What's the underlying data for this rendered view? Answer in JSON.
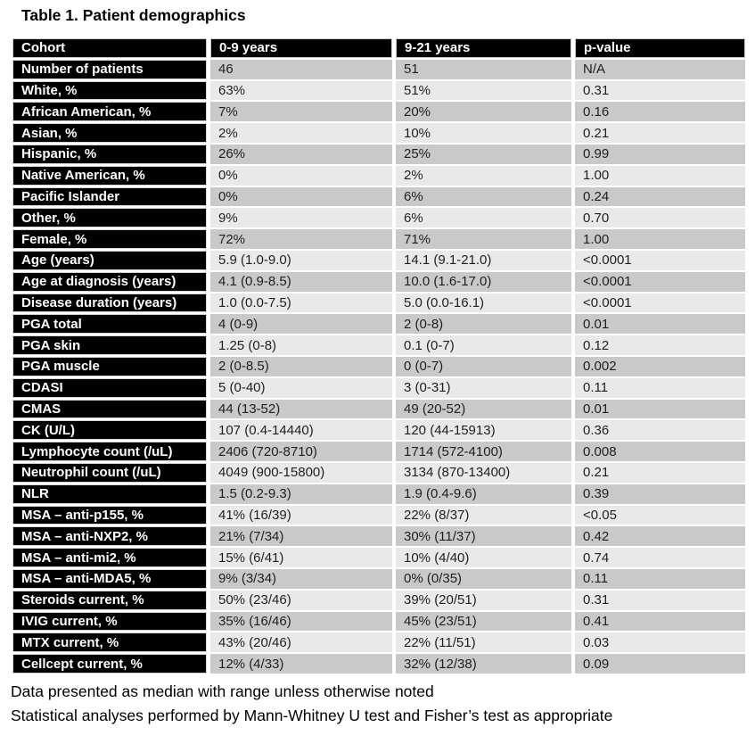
{
  "title": "Table 1. Patient demographics",
  "table": {
    "columns": [
      "Cohort",
      "0-9 years",
      "9-21 years",
      "p-value"
    ],
    "rows": [
      {
        "label": "Number of patients",
        "c1": "46",
        "c2": "51",
        "p": "N/A"
      },
      {
        "label": "White, %",
        "c1": "63%",
        "c2": "51%",
        "p": "0.31"
      },
      {
        "label": "African American, %",
        "c1": "7%",
        "c2": "20%",
        "p": "0.16"
      },
      {
        "label": "Asian, %",
        "c1": "2%",
        "c2": "10%",
        "p": "0.21"
      },
      {
        "label": "Hispanic, %",
        "c1": "26%",
        "c2": "25%",
        "p": "0.99"
      },
      {
        "label": "Native American, %",
        "c1": "0%",
        "c2": "2%",
        "p": "1.00"
      },
      {
        "label": "Pacific Islander",
        "c1": "0%",
        "c2": "6%",
        "p": "0.24"
      },
      {
        "label": "Other, %",
        "c1": "9%",
        "c2": "6%",
        "p": "0.70"
      },
      {
        "label": "Female, %",
        "c1": "72%",
        "c2": "71%",
        "p": "1.00"
      },
      {
        "label": "Age (years)",
        "c1": "5.9 (1.0-9.0)",
        "c2": "14.1 (9.1-21.0)",
        "p": "<0.0001"
      },
      {
        "label": "Age at diagnosis (years)",
        "c1": "4.1 (0.9-8.5)",
        "c2": "10.0 (1.6-17.0)",
        "p": "<0.0001"
      },
      {
        "label": "Disease duration (years)",
        "c1": "1.0 (0.0-7.5)",
        "c2": "5.0 (0.0-16.1)",
        "p": "<0.0001"
      },
      {
        "label": "PGA total",
        "c1": "4 (0-9)",
        "c2": "2 (0-8)",
        "p": "0.01"
      },
      {
        "label": "PGA skin",
        "c1": "1.25 (0-8)",
        "c2": "0.1 (0-7)",
        "p": "0.12"
      },
      {
        "label": "PGA muscle",
        "c1": "2 (0-8.5)",
        "c2": "0 (0-7)",
        "p": "0.002"
      },
      {
        "label": "CDASI",
        "c1": "5 (0-40)",
        "c2": "3 (0-31)",
        "p": "0.11"
      },
      {
        "label": "CMAS",
        "c1": "44 (13-52)",
        "c2": "49 (20-52)",
        "p": "0.01"
      },
      {
        "label": "CK (U/L)",
        "c1": "107 (0.4-14440)",
        "c2": "120 (44-15913)",
        "p": "0.36"
      },
      {
        "label": "Lymphocyte count (/uL)",
        "c1": "2406 (720-8710)",
        "c2": "1714 (572-4100)",
        "p": "0.008"
      },
      {
        "label": "Neutrophil count (/uL)",
        "c1": "4049 (900-15800)",
        "c2": "3134 (870-13400)",
        "p": "0.21"
      },
      {
        "label": "NLR",
        "c1": "1.5 (0.2-9.3)",
        "c2": "1.9 (0.4-9.6)",
        "p": "0.39"
      },
      {
        "label": "MSA – anti-p155, %",
        "c1": "41% (16/39)",
        "c2": "22% (8/37)",
        "p": "<0.05"
      },
      {
        "label": "MSA – anti-NXP2, %",
        "c1": "21% (7/34)",
        "c2": "30% (11/37)",
        "p": "0.42"
      },
      {
        "label": "MSA – anti-mi2, %",
        "c1": "15% (6/41)",
        "c2": "10% (4/40)",
        "p": "0.74"
      },
      {
        "label": "MSA – anti-MDA5, %",
        "c1": "9% (3/34)",
        "c2": "0% (0/35)",
        "p": "0.11"
      },
      {
        "label": "Steroids current, %",
        "c1": "50% (23/46)",
        "c2": "39% (20/51)",
        "p": "0.31"
      },
      {
        "label": "IVIG current, %",
        "c1": "35% (16/46)",
        "c2": "45% (23/51)",
        "p": "0.41"
      },
      {
        "label": "MTX current, %",
        "c1": "43% (20/46)",
        "c2": "22% (11/51)",
        "p": "0.03"
      },
      {
        "label": "Cellcept current, %",
        "c1": "12% (4/33)",
        "c2": "32% (12/38)",
        "p": "0.09"
      }
    ]
  },
  "notes": [
    "Data presented as median with range unless otherwise noted",
    "Statistical analyses performed by Mann-Whitney U test and Fisher’s test as appropriate"
  ],
  "colors": {
    "header_bg": "#000000",
    "header_text": "#ffffff",
    "row_stripe_dark": "#c9c9c9",
    "row_stripe_light": "#e9e9e9",
    "body_text": "#1f1f1f"
  }
}
